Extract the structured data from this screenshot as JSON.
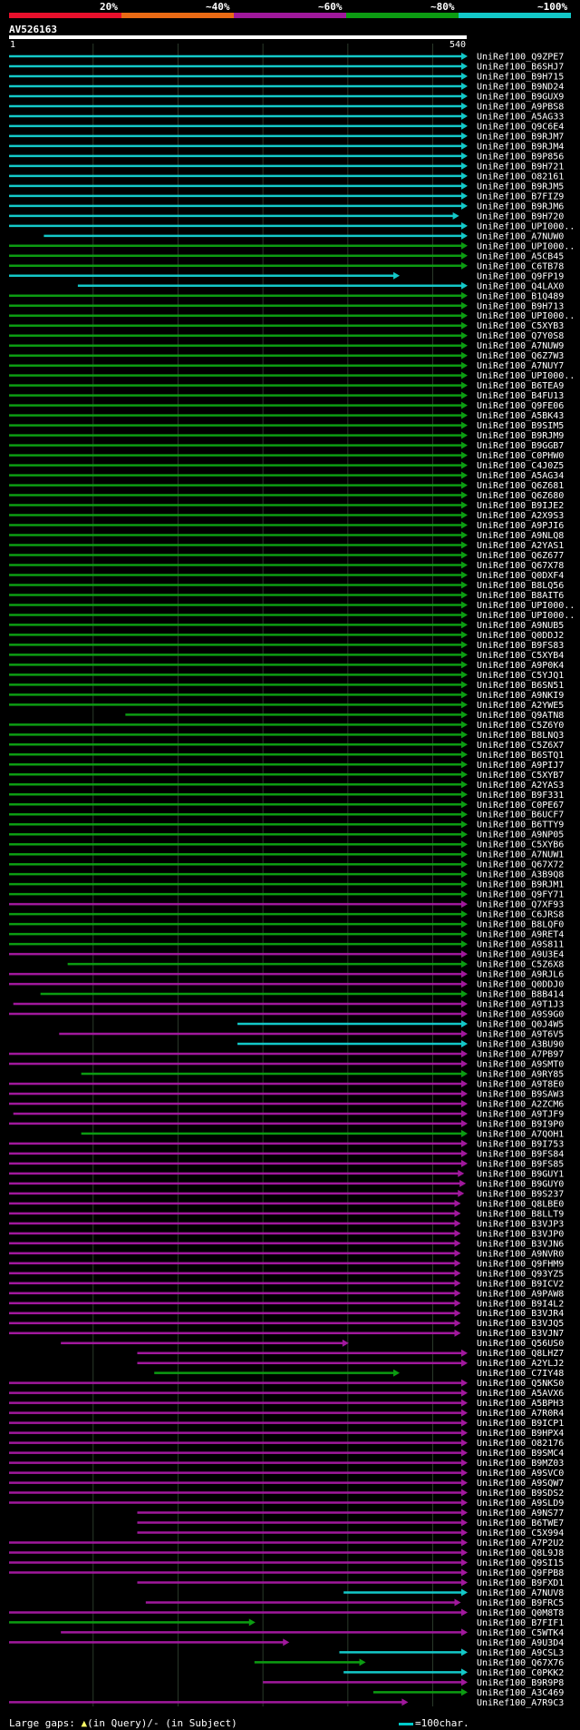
{
  "query": {
    "id": "AV526163",
    "start": "1",
    "end": "540",
    "length": 540
  },
  "identity_legend": [
    {
      "label": "20%",
      "color": "#e8102c"
    },
    {
      "label": "~40%",
      "color": "#ea6a14"
    },
    {
      "label": "~60%",
      "color": "#a0189c"
    },
    {
      "label": "~80%",
      "color": "#0c9c12"
    },
    {
      "label": "~100%",
      "color": "#13c8c8"
    }
  ],
  "colors": {
    "identity_100": "#13c8c8",
    "identity_80": "#0c9c12",
    "identity_60": "#a0189c",
    "gap_marker": "#ffff66",
    "grid": "#2a3a2a"
  },
  "footer": {
    "prefix": "Large gaps: ",
    "in_query": "(in Query)/",
    "dash": "-",
    "in_subject": " (in Subject)"
  },
  "scale": {
    "label": "=100char."
  },
  "hits": [
    {
      "name": "UniRef100_Q9ZPE7",
      "c": "t",
      "s": 1,
      "e": 540
    },
    {
      "name": "UniRef100_B6SHJ7",
      "c": "t",
      "s": 1,
      "e": 540
    },
    {
      "name": "UniRef100_B9H715",
      "c": "t",
      "s": 1,
      "e": 540
    },
    {
      "name": "UniRef100_B9ND24",
      "c": "t",
      "s": 1,
      "e": 540
    },
    {
      "name": "UniRef100_B9GUX9",
      "c": "t",
      "s": 1,
      "e": 540
    },
    {
      "name": "UniRef100_A9PBS8",
      "c": "t",
      "s": 1,
      "e": 540
    },
    {
      "name": "UniRef100_A5AG33",
      "c": "t",
      "s": 1,
      "e": 540
    },
    {
      "name": "UniRef100_Q9C6E4",
      "c": "t",
      "s": 1,
      "e": 540
    },
    {
      "name": "UniRef100_B9RJM7",
      "c": "t",
      "s": 1,
      "e": 540
    },
    {
      "name": "UniRef100_B9RJM4",
      "c": "t",
      "s": 1,
      "e": 540
    },
    {
      "name": "UniRef100_B9P856",
      "c": "t",
      "s": 1,
      "e": 540
    },
    {
      "name": "UniRef100_B9H721",
      "c": "t",
      "s": 1,
      "e": 540
    },
    {
      "name": "UniRef100_O82161",
      "c": "t",
      "s": 1,
      "e": 540
    },
    {
      "name": "UniRef100_B9RJM5",
      "c": "t",
      "s": 1,
      "e": 540
    },
    {
      "name": "UniRef100_B7FIZ9",
      "c": "t",
      "s": 1,
      "e": 540
    },
    {
      "name": "UniRef100_B9RJM6",
      "c": "t",
      "s": 1,
      "e": 540
    },
    {
      "name": "UniRef100_B9H720",
      "c": "t",
      "s": 1,
      "e": 530
    },
    {
      "name": "UniRef100_UPI000..",
      "c": "t",
      "s": 1,
      "e": 540
    },
    {
      "name": "UniRef100_A7NUW0",
      "c": "t",
      "s": 42,
      "e": 540
    },
    {
      "name": "UniRef100_UPI000..",
      "c": "g",
      "s": 1,
      "e": 540
    },
    {
      "name": "UniRef100_A5CB45",
      "c": "g",
      "s": 1,
      "e": 540
    },
    {
      "name": "UniRef100_C6TB78",
      "c": "g",
      "s": 1,
      "e": 540
    },
    {
      "name": "UniRef100_Q9FP19",
      "c": "t",
      "s": 1,
      "e": 460
    },
    {
      "name": "UniRef100_Q4LAX0",
      "c": "t",
      "s": 82,
      "e": 540
    },
    {
      "name": "UniRef100_B1Q489",
      "c": "g",
      "s": 1,
      "e": 540
    },
    {
      "name": "UniRef100_B9H713",
      "c": "g",
      "s": 1,
      "e": 540
    },
    {
      "name": "UniRef100_UPI000..",
      "c": "g",
      "s": 1,
      "e": 540
    },
    {
      "name": "UniRef100_C5XYB3",
      "c": "g",
      "s": 1,
      "e": 540
    },
    {
      "name": "UniRef100_Q7Y0S8",
      "c": "g",
      "s": 1,
      "e": 540
    },
    {
      "name": "UniRef100_A7NUW9",
      "c": "g",
      "s": 1,
      "e": 540
    },
    {
      "name": "UniRef100_Q6Z7W3",
      "c": "g",
      "s": 1,
      "e": 540
    },
    {
      "name": "UniRef100_A7NUY7",
      "c": "g",
      "s": 1,
      "e": 540
    },
    {
      "name": "UniRef100_UPI000..",
      "c": "g",
      "s": 1,
      "e": 540
    },
    {
      "name": "UniRef100_B6TEA9",
      "c": "g",
      "s": 1,
      "e": 540
    },
    {
      "name": "UniRef100_B4FU13",
      "c": "g",
      "s": 1,
      "e": 540
    },
    {
      "name": "UniRef100_Q9FE06",
      "c": "g",
      "s": 1,
      "e": 540
    },
    {
      "name": "UniRef100_A5BK43",
      "c": "g",
      "s": 1,
      "e": 540
    },
    {
      "name": "UniRef100_B9SIM5",
      "c": "g",
      "s": 1,
      "e": 540
    },
    {
      "name": "UniRef100_B9RJM9",
      "c": "g",
      "s": 1,
      "e": 540
    },
    {
      "name": "UniRef100_B9GGB7",
      "c": "g",
      "s": 1,
      "e": 540
    },
    {
      "name": "UniRef100_C0PHW0",
      "c": "g",
      "s": 1,
      "e": 540
    },
    {
      "name": "UniRef100_C4J0Z5",
      "c": "g",
      "s": 1,
      "e": 540
    },
    {
      "name": "UniRef100_A5AG34",
      "c": "g",
      "s": 1,
      "e": 540
    },
    {
      "name": "UniRef100_Q6Z681",
      "c": "g",
      "s": 1,
      "e": 540
    },
    {
      "name": "UniRef100_Q6Z680",
      "c": "g",
      "s": 1,
      "e": 540
    },
    {
      "name": "UniRef100_B9IJE2",
      "c": "g",
      "s": 1,
      "e": 540
    },
    {
      "name": "UniRef100_A2X9S3",
      "c": "g",
      "s": 1,
      "e": 540
    },
    {
      "name": "UniRef100_A9PJI6",
      "c": "g",
      "s": 1,
      "e": 540
    },
    {
      "name": "UniRef100_A9NLQ8",
      "c": "g",
      "s": 1,
      "e": 540
    },
    {
      "name": "UniRef100_A2YAS1",
      "c": "g",
      "s": 1,
      "e": 540
    },
    {
      "name": "UniRef100_Q6Z677",
      "c": "g",
      "s": 1,
      "e": 540
    },
    {
      "name": "UniRef100_Q67X78",
      "c": "g",
      "s": 1,
      "e": 540
    },
    {
      "name": "UniRef100_Q0DXF4",
      "c": "g",
      "s": 1,
      "e": 540
    },
    {
      "name": "UniRef100_B8LQ56",
      "c": "g",
      "s": 1,
      "e": 540
    },
    {
      "name": "UniRef100_B8AIT6",
      "c": "g",
      "s": 1,
      "e": 540
    },
    {
      "name": "UniRef100_UPI000..",
      "c": "g",
      "s": 1,
      "e": 540
    },
    {
      "name": "UniRef100_UPI000..",
      "c": "g",
      "s": 1,
      "e": 540
    },
    {
      "name": "UniRef100_A9NUB5",
      "c": "g",
      "s": 1,
      "e": 540
    },
    {
      "name": "UniRef100_Q0DDJ2",
      "c": "g",
      "s": 1,
      "e": 540
    },
    {
      "name": "UniRef100_B9FS83",
      "c": "g",
      "s": 1,
      "e": 540
    },
    {
      "name": "UniRef100_C5XYB4",
      "c": "g",
      "s": 1,
      "e": 540
    },
    {
      "name": "UniRef100_A9P0K4",
      "c": "g",
      "s": 1,
      "e": 540
    },
    {
      "name": "UniRef100_C5YJQ1",
      "c": "g",
      "s": 1,
      "e": 540
    },
    {
      "name": "UniRef100_B6SN51",
      "c": "g",
      "s": 1,
      "e": 540
    },
    {
      "name": "UniRef100_A9NKI9",
      "c": "g",
      "s": 1,
      "e": 540
    },
    {
      "name": "UniRef100_A2YWE5",
      "c": "g",
      "s": 1,
      "e": 540
    },
    {
      "name": "UniRef100_Q9ATN8",
      "c": "g",
      "s": 138,
      "e": 540
    },
    {
      "name": "UniRef100_C5Z6Y0",
      "c": "g",
      "s": 1,
      "e": 540
    },
    {
      "name": "UniRef100_B8LNQ3",
      "c": "g",
      "s": 1,
      "e": 540
    },
    {
      "name": "UniRef100_C5Z6X7",
      "c": "g",
      "s": 1,
      "e": 540
    },
    {
      "name": "UniRef100_B6STQ1",
      "c": "g",
      "s": 1,
      "e": 540
    },
    {
      "name": "UniRef100_A9PIJ7",
      "c": "g",
      "s": 1,
      "e": 540
    },
    {
      "name": "UniRef100_C5XYB7",
      "c": "g",
      "s": 1,
      "e": 540
    },
    {
      "name": "UniRef100_A2YAS3",
      "c": "g",
      "s": 1,
      "e": 540
    },
    {
      "name": "UniRef100_B9F331",
      "c": "g",
      "s": 1,
      "e": 540
    },
    {
      "name": "UniRef100_C0PE67",
      "c": "g",
      "s": 1,
      "e": 540
    },
    {
      "name": "UniRef100_B6UCF7",
      "c": "g",
      "s": 1,
      "e": 540
    },
    {
      "name": "UniRef100_B6TTY9",
      "c": "g",
      "s": 1,
      "e": 540
    },
    {
      "name": "UniRef100_A9NP05",
      "c": "g",
      "s": 1,
      "e": 540
    },
    {
      "name": "UniRef100_C5XYB6",
      "c": "g",
      "s": 1,
      "e": 540
    },
    {
      "name": "UniRef100_A7NUW1",
      "c": "g",
      "s": 1,
      "e": 540
    },
    {
      "name": "UniRef100_Q67X72",
      "c": "g",
      "s": 1,
      "e": 540
    },
    {
      "name": "UniRef100_A3B9Q8",
      "c": "g",
      "s": 1,
      "e": 540
    },
    {
      "name": "UniRef100_B9RJM1",
      "c": "g",
      "s": 1,
      "e": 540
    },
    {
      "name": "UniRef100_Q9FY71",
      "c": "g",
      "s": 1,
      "e": 540
    },
    {
      "name": "UniRef100_Q7XF93",
      "c": "p",
      "s": 1,
      "e": 540
    },
    {
      "name": "UniRef100_C6JRS8",
      "c": "g",
      "s": 1,
      "e": 540
    },
    {
      "name": "UniRef100_B8LQF0",
      "c": "g",
      "s": 1,
      "e": 540
    },
    {
      "name": "UniRef100_A9RET4",
      "c": "g",
      "s": 1,
      "e": 540
    },
    {
      "name": "UniRef100_A9S811",
      "c": "g",
      "s": 1,
      "e": 540
    },
    {
      "name": "UniRef100_A9U3E4",
      "c": "p",
      "s": 1,
      "e": 540
    },
    {
      "name": "UniRef100_C5Z6X8",
      "c": "g",
      "s": 70,
      "e": 540
    },
    {
      "name": "UniRef100_A9RJL6",
      "c": "p",
      "s": 1,
      "e": 540
    },
    {
      "name": "UniRef100_Q0DDJ0",
      "c": "p",
      "s": 1,
      "e": 540
    },
    {
      "name": "UniRef100_B8B414",
      "c": "g",
      "s": 38,
      "e": 540
    },
    {
      "name": "UniRef100_A9T1J3",
      "c": "p",
      "s": 6,
      "e": 540
    },
    {
      "name": "UniRef100_A9S9G0",
      "c": "p",
      "s": 1,
      "e": 540
    },
    {
      "name": "UniRef100_Q0J4W5",
      "c": "t",
      "s": 270,
      "e": 540
    },
    {
      "name": "UniRef100_A9T6V5",
      "c": "p",
      "s": 60,
      "e": 540
    },
    {
      "name": "UniRef100_A3BU90",
      "c": "t",
      "s": 270,
      "e": 540
    },
    {
      "name": "UniRef100_A7PB97",
      "c": "p",
      "s": 1,
      "e": 540
    },
    {
      "name": "UniRef100_A9SMT0",
      "c": "p",
      "s": 1,
      "e": 540
    },
    {
      "name": "UniRef100_A9RY85",
      "c": "g",
      "s": 86,
      "e": 540
    },
    {
      "name": "UniRef100_A9T8E0",
      "c": "p",
      "s": 1,
      "e": 540
    },
    {
      "name": "UniRef100_B9SAW3",
      "c": "p",
      "s": 1,
      "e": 540
    },
    {
      "name": "UniRef100_A2ZCM6",
      "c": "p",
      "s": 1,
      "e": 540
    },
    {
      "name": "UniRef100_A9TJF9",
      "c": "p",
      "s": 6,
      "e": 540
    },
    {
      "name": "UniRef100_B9I9P0",
      "c": "p",
      "s": 1,
      "e": 540
    },
    {
      "name": "UniRef100_A7QOH1",
      "c": "g",
      "s": 86,
      "e": 540
    },
    {
      "name": "UniRef100_B9I753",
      "c": "p",
      "s": 1,
      "e": 540
    },
    {
      "name": "UniRef100_B9FS84",
      "c": "p",
      "s": 1,
      "e": 540
    },
    {
      "name": "UniRef100_B9FS85",
      "c": "p",
      "s": 1,
      "e": 540
    },
    {
      "name": "UniRef100_B9GUY1",
      "c": "p",
      "s": 1,
      "e": 536
    },
    {
      "name": "UniRef100_B9GUY0",
      "c": "p",
      "s": 1,
      "e": 538
    },
    {
      "name": "UniRef100_B9S237",
      "c": "p",
      "s": 1,
      "e": 536
    },
    {
      "name": "UniRef100_Q8LBE0",
      "c": "p",
      "s": 1,
      "e": 532
    },
    {
      "name": "UniRef100_B8LLT9",
      "c": "p",
      "s": 1,
      "e": 532
    },
    {
      "name": "UniRef100_B3VJP3",
      "c": "p",
      "s": 1,
      "e": 532
    },
    {
      "name": "UniRef100_B3VJP0",
      "c": "p",
      "s": 1,
      "e": 532
    },
    {
      "name": "UniRef100_B3VJN6",
      "c": "p",
      "s": 1,
      "e": 532
    },
    {
      "name": "UniRef100_A9NVR0",
      "c": "p",
      "s": 1,
      "e": 532
    },
    {
      "name": "UniRef100_Q9FHM9",
      "c": "p",
      "s": 1,
      "e": 532
    },
    {
      "name": "UniRef100_Q93YZ5",
      "c": "p",
      "s": 1,
      "e": 532
    },
    {
      "name": "UniRef100_B9ICV2",
      "c": "p",
      "s": 1,
      "e": 532
    },
    {
      "name": "UniRef100_A9PAW8",
      "c": "p",
      "s": 1,
      "e": 532
    },
    {
      "name": "UniRef100_B9I4L2",
      "c": "p",
      "s": 1,
      "e": 532
    },
    {
      "name": "UniRef100_B3VJR4",
      "c": "p",
      "s": 1,
      "e": 532
    },
    {
      "name": "UniRef100_B3VJQ5",
      "c": "p",
      "s": 1,
      "e": 532
    },
    {
      "name": "UniRef100_B3VJN7",
      "c": "p",
      "s": 1,
      "e": 532
    },
    {
      "name": "UniRef100_Q56US0",
      "c": "p",
      "s": 62,
      "e": 400
    },
    {
      "name": "UniRef100_Q8LHZ7",
      "c": "p",
      "s": 152,
      "e": 540
    },
    {
      "name": "UniRef100_A2YLJ2",
      "c": "p",
      "s": 152,
      "e": 540
    },
    {
      "name": "UniRef100_C7IY48",
      "c": "g",
      "s": 172,
      "e": 460
    },
    {
      "name": "UniRef100_Q5NKS0",
      "c": "p",
      "s": 1,
      "e": 540
    },
    {
      "name": "UniRef100_A5AVX6",
      "c": "p",
      "s": 1,
      "e": 540
    },
    {
      "name": "UniRef100_A5BPH3",
      "c": "p",
      "s": 1,
      "e": 540
    },
    {
      "name": "UniRef100_A7R0R4",
      "c": "p",
      "s": 1,
      "e": 540
    },
    {
      "name": "UniRef100_B9ICP1",
      "c": "p",
      "s": 1,
      "e": 540
    },
    {
      "name": "UniRef100_B9HPX4",
      "c": "p",
      "s": 1,
      "e": 540
    },
    {
      "name": "UniRef100_O82176",
      "c": "p",
      "s": 1,
      "e": 540
    },
    {
      "name": "UniRef100_B9SMC4",
      "c": "p",
      "s": 1,
      "e": 540
    },
    {
      "name": "UniRef100_B9MZ03",
      "c": "p",
      "s": 1,
      "e": 540
    },
    {
      "name": "UniRef100_A9SVC0",
      "c": "p",
      "s": 1,
      "e": 540
    },
    {
      "name": "UniRef100_A9SQW7",
      "c": "p",
      "s": 1,
      "e": 540
    },
    {
      "name": "UniRef100_B9SDS2",
      "c": "p",
      "s": 1,
      "e": 540
    },
    {
      "name": "UniRef100_A9SLD9",
      "c": "p",
      "s": 1,
      "e": 540
    },
    {
      "name": "UniRef100_A9NS77",
      "c": "p",
      "s": 152,
      "e": 540
    },
    {
      "name": "UniRef100_B6TWE7",
      "c": "p",
      "s": 152,
      "e": 540
    },
    {
      "name": "UniRef100_C5X994",
      "c": "p",
      "s": 152,
      "e": 540
    },
    {
      "name": "UniRef100_A7P2U2",
      "c": "p",
      "s": 1,
      "e": 540
    },
    {
      "name": "UniRef100_Q8L9J8",
      "c": "p",
      "s": 1,
      "e": 540
    },
    {
      "name": "UniRef100_Q9SI15",
      "c": "p",
      "s": 1,
      "e": 540
    },
    {
      "name": "UniRef100_Q9FPB8",
      "c": "p",
      "s": 1,
      "e": 540
    },
    {
      "name": "UniRef100_B9FXD1",
      "c": "p",
      "s": 152,
      "e": 540
    },
    {
      "name": "UniRef100_A7NUV8",
      "c": "t",
      "s": 395,
      "e": 540
    },
    {
      "name": "UniRef100_B9FRC5",
      "c": "p",
      "s": 162,
      "e": 532
    },
    {
      "name": "UniRef100_Q0M8T8",
      "c": "p",
      "s": 1,
      "e": 540
    },
    {
      "name": "UniRef100_B7FIF1",
      "c": "g",
      "s": 1,
      "e": 290
    },
    {
      "name": "UniRef100_C5WTK4",
      "c": "p",
      "s": 62,
      "e": 540
    },
    {
      "name": "UniRef100_A9U3D4",
      "c": "p",
      "s": 1,
      "e": 330
    },
    {
      "name": "UniRef100_A9CSL3",
      "c": "t",
      "s": 390,
      "e": 540
    },
    {
      "name": "UniRef100_Q67X76",
      "c": "g",
      "s": 290,
      "e": 420
    },
    {
      "name": "UniRef100_C0PKK2",
      "c": "t",
      "s": 395,
      "e": 540
    },
    {
      "name": "UniRef100_B9R9P8",
      "c": "p",
      "s": 300,
      "e": 540
    },
    {
      "name": "UniRef100_A3C469",
      "c": "g",
      "s": 430,
      "e": 540
    },
    {
      "name": "UniRef100_A7R9C3",
      "c": "p",
      "s": 1,
      "e": 470
    }
  ]
}
